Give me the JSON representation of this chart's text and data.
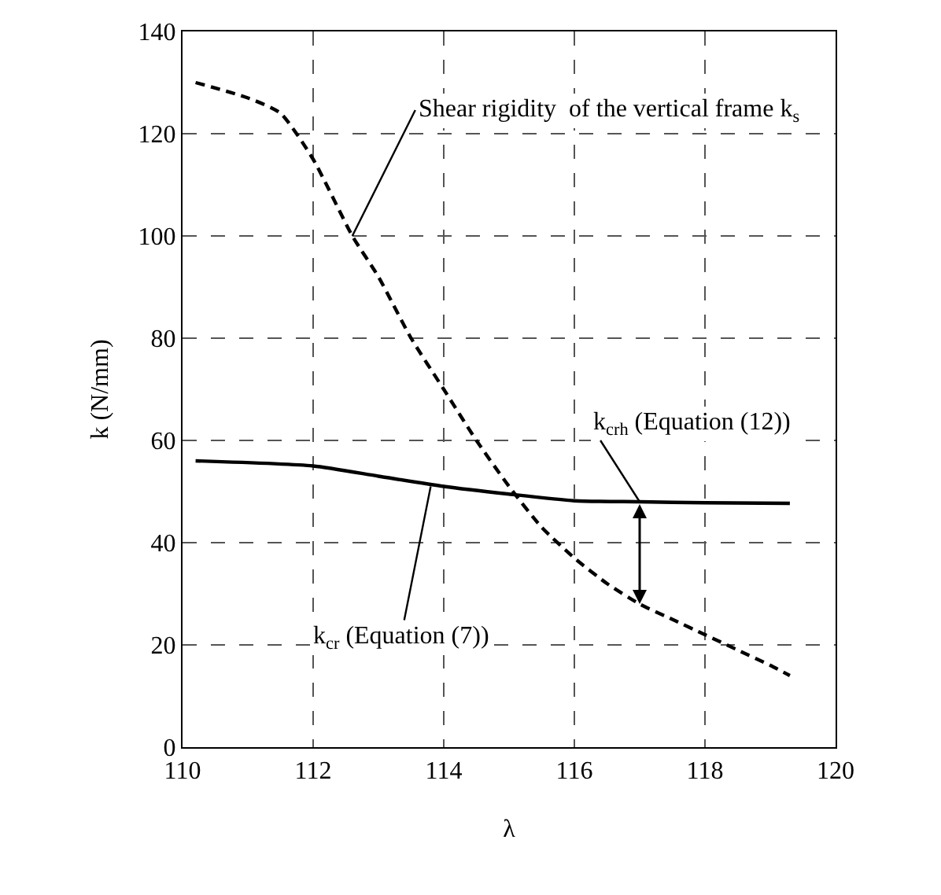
{
  "chart_data": {
    "type": "line",
    "xlabel": "λ",
    "ylabel": "k (N/mm)",
    "xlim": [
      110,
      120
    ],
    "xticks": [
      110,
      112,
      114,
      116,
      118,
      120
    ],
    "ylim": [
      0,
      140
    ],
    "yticks": [
      0,
      20,
      40,
      60,
      80,
      100,
      120,
      140
    ],
    "grid": true,
    "marker": "none",
    "series": [
      {
        "color": "#000000",
        "line_style": "dashed",
        "x": [
          110.2,
          111,
          111.5,
          112,
          112.6,
          113,
          113.5,
          114,
          114.5,
          115,
          115.5,
          116,
          116.5,
          117,
          117.5,
          118,
          118.5,
          119,
          119.3
        ],
        "values": [
          130,
          127,
          124,
          115,
          100,
          92,
          80,
          70,
          60,
          51,
          43,
          37,
          32,
          28,
          25,
          22,
          19,
          16,
          14
        ]
      },
      {
        "color": "#000000",
        "line_style": "solid",
        "x": [
          110.2,
          112,
          113,
          114,
          115,
          116,
          117,
          118,
          119.3
        ],
        "values": [
          56,
          55,
          53,
          51,
          49.5,
          48.2,
          48,
          47.8,
          47.7
        ]
      }
    ],
    "annotations": [
      {
        "text": "Shear rigidity  of the vertical frame k$_{s}$",
        "x": 112.6,
        "y": 100
      },
      {
        "text": "k$_{cr}$ (Equation (7))",
        "x": 113.8,
        "y": 51
      },
      {
        "text": "k$_{crh}$ (Equation (12))",
        "x": 117,
        "y": 48
      }
    ]
  }
}
